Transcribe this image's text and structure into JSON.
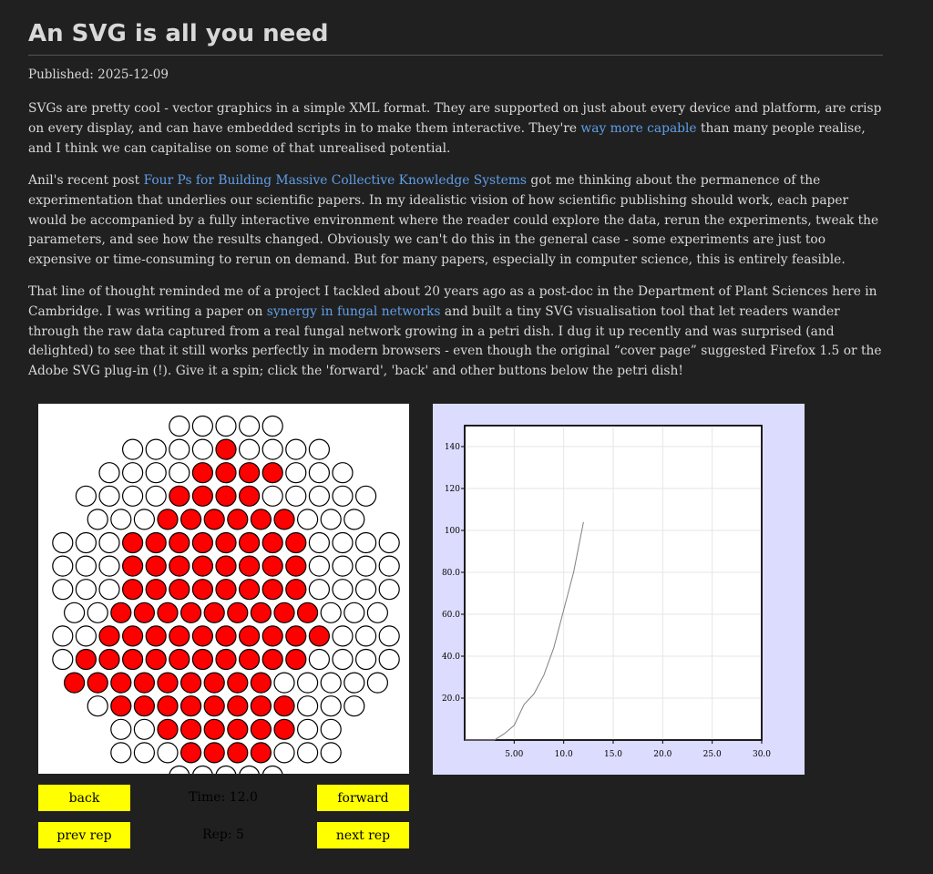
{
  "article": {
    "title": "An SVG is all you need",
    "published": "Published: 2025-12-09",
    "p1": {
      "before": "SVGs are pretty cool - vector graphics in a simple XML format. They are supported on just about every device and platform, are crisp on every display, and can have embedded scripts in to make them interactive. They're ",
      "link": "way more capable",
      "after": " than many people realise, and I think we can capitalise on some of that unrealised potential."
    },
    "p2": {
      "before": "Anil's recent post ",
      "link": "Four Ps for Building Massive Collective Knowledge Systems",
      "after": " got me thinking about the permanence of the experimentation that underlies our scientific papers. In my idealistic vision of how scientific publishing should work, each paper would be accompanied by a fully interactive environment where the reader could explore the data, rerun the experiments, tweak the parameters, and see how the results changed. Obviously we can't do this in the general case - some experiments are just too expensive or time-consuming to rerun on demand. But for many papers, especially in computer science, this is entirely feasible."
    },
    "p3": {
      "before": "That line of thought reminded me of a project I tackled about 20 years ago as a post-doc in the Department of Plant Sciences here in Cambridge. I was writing a paper on ",
      "link": "synergy in fungal networks",
      "after": " and built a tiny SVG visualisation tool that let readers wander through the raw data captured from a real fungal network growing in a petri dish. I dug it up recently and was surprised (and delighted) to see that it still works perfectly in modern browsers - even though the original “cover page” suggested Firefox 1.5 or the Adobe SVG plug-in (!). Give it a spin; click the 'forward', 'back' and other buttons below the petri dish!"
    }
  },
  "petri": {
    "fill_color": "#ff0000",
    "empty_color": "#ffffff",
    "rows": [
      "00000",
      "000010000",
      "00001111000",
      "0000111100000",
      "000111111000",
      "000111111110000",
      "000111111110000",
      "000111111110000",
      "00111111111000",
      "001111111111000",
      "011111111110000",
      "11111111100000",
      "011111111000",
      "0011111100",
      "0001111000",
      "00000"
    ]
  },
  "controls": {
    "back": "back",
    "forward": "forward",
    "prev_rep": "prev rep",
    "next_rep": "next rep",
    "time": "Time: 12.0",
    "rep": "Rep: 5"
  },
  "chart_data": {
    "type": "line",
    "title": "",
    "xlabel": "",
    "ylabel": "",
    "xlim": [
      0,
      30
    ],
    "ylim": [
      0,
      150
    ],
    "xticks": [
      "5.00",
      "10.0",
      "15.0",
      "20.0",
      "25.0",
      "30.0"
    ],
    "yticks": [
      "20.0",
      "40.0",
      "60.0",
      "80.0",
      "100",
      "120",
      "140"
    ],
    "grid": true,
    "line_color": "#808080",
    "x": [
      0,
      1,
      2,
      3,
      4,
      5,
      6,
      7,
      8,
      9,
      10,
      11,
      12
    ],
    "y": [
      0,
      0,
      0,
      0,
      3,
      7,
      17,
      22,
      31,
      44,
      62,
      80,
      104
    ]
  }
}
